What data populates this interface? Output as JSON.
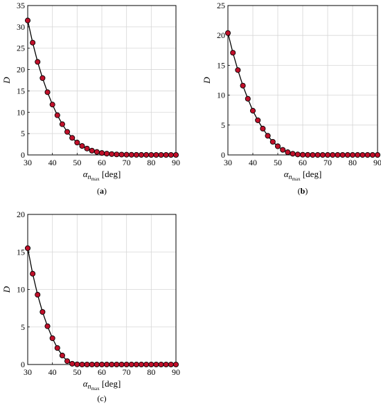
{
  "colors": {
    "marker_fill": "#c0102a",
    "line": "#000000",
    "grid": "#d6d6d6"
  },
  "chart_data": [
    {
      "type": "line",
      "panel_label_plain": "(",
      "panel_label_bold": "a",
      "panel_label_tail": ")",
      "xlabel": "α_n_max [deg]",
      "ylabel": "D",
      "xlim": [
        30,
        90
      ],
      "ylim": [
        0,
        35
      ],
      "xticks": [
        "30",
        "40",
        "50",
        "60",
        "70",
        "80",
        "90"
      ],
      "yticks": [
        "0",
        "5",
        "10",
        "15",
        "20",
        "25",
        "30",
        "35"
      ],
      "grid": true,
      "x": [
        30,
        32,
        34,
        36,
        38,
        40,
        42,
        44,
        46,
        48,
        50,
        52,
        54,
        56,
        58,
        60,
        62,
        64,
        66,
        68,
        70,
        72,
        74,
        76,
        78,
        80,
        82,
        84,
        86,
        88,
        90
      ],
      "y": [
        31.5,
        26.3,
        21.8,
        18.0,
        14.7,
        11.8,
        9.3,
        7.2,
        5.4,
        4.0,
        2.9,
        2.1,
        1.5,
        1.0,
        0.7,
        0.45,
        0.3,
        0.2,
        0.12,
        0.08,
        0.05,
        0.03,
        0.02,
        0.01,
        0.01,
        0.0,
        0.0,
        0.0,
        0.0,
        0.0,
        0.0
      ]
    },
    {
      "type": "line",
      "panel_label_plain": "(",
      "panel_label_bold": "b",
      "panel_label_tail": ")",
      "xlabel": "α_n_max [deg]",
      "ylabel": "D",
      "xlim": [
        30,
        90
      ],
      "ylim": [
        0,
        25
      ],
      "xticks": [
        "30",
        "40",
        "50",
        "60",
        "70",
        "80",
        "90"
      ],
      "yticks": [
        "0",
        "5",
        "10",
        "15",
        "20",
        "25"
      ],
      "grid": true,
      "x": [
        30,
        32,
        34,
        36,
        38,
        40,
        42,
        44,
        46,
        48,
        50,
        52,
        54,
        56,
        58,
        60,
        62,
        64,
        66,
        68,
        70,
        72,
        74,
        76,
        78,
        80,
        82,
        84,
        86,
        88,
        90
      ],
      "y": [
        20.4,
        17.1,
        14.2,
        11.6,
        9.4,
        7.4,
        5.8,
        4.4,
        3.2,
        2.2,
        1.45,
        0.85,
        0.45,
        0.2,
        0.08,
        0.03,
        0.01,
        0.0,
        0.0,
        0.0,
        0.0,
        0.0,
        0.0,
        0.0,
        0.0,
        0.0,
        0.0,
        0.0,
        0.0,
        0.0,
        0.0
      ]
    },
    {
      "type": "line",
      "panel_label_plain": "(c)",
      "panel_label_bold": "",
      "panel_label_tail": "",
      "xlabel": "α_n_max [deg]",
      "ylabel": "D",
      "xlim": [
        30,
        90
      ],
      "ylim": [
        0,
        20
      ],
      "xticks": [
        "30",
        "40",
        "50",
        "60",
        "70",
        "80",
        "90"
      ],
      "yticks": [
        "0",
        "5",
        "10",
        "15",
        "20"
      ],
      "grid": true,
      "x": [
        30,
        32,
        34,
        36,
        38,
        40,
        42,
        44,
        46,
        48,
        50,
        52,
        54,
        56,
        58,
        60,
        62,
        64,
        66,
        68,
        70,
        72,
        74,
        76,
        78,
        80,
        82,
        84,
        86,
        88,
        90
      ],
      "y": [
        15.5,
        12.1,
        9.3,
        7.0,
        5.1,
        3.5,
        2.2,
        1.2,
        0.45,
        0.1,
        0.02,
        0.0,
        0.0,
        0.0,
        0.0,
        0.0,
        0.0,
        0.0,
        0.0,
        0.0,
        0.0,
        0.0,
        0.0,
        0.0,
        0.0,
        0.0,
        0.0,
        0.0,
        0.0,
        0.0,
        0.0
      ]
    }
  ]
}
